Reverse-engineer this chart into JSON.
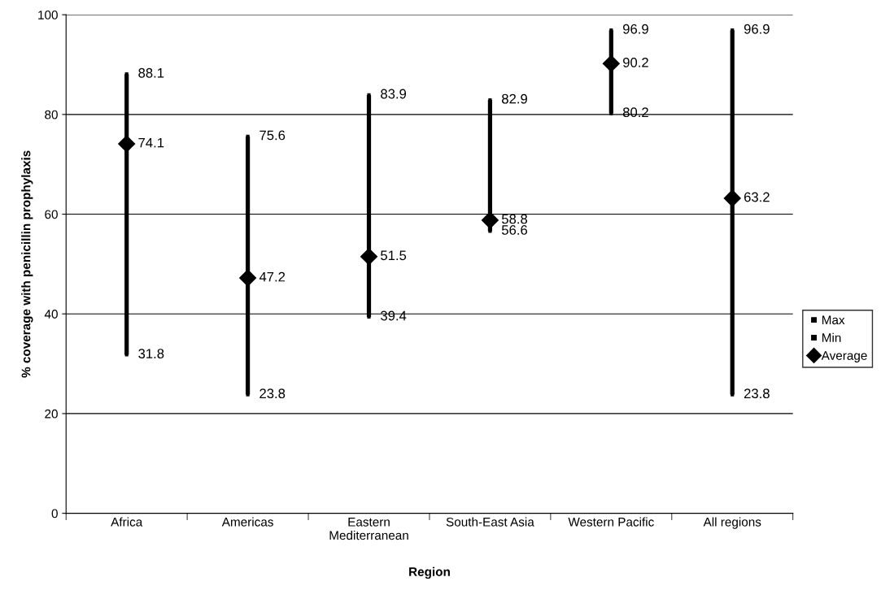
{
  "chart_data": {
    "type": "scatter",
    "xlabel": "Region",
    "ylabel": "% coverage with penicillin prophylaxis",
    "categories": [
      "Africa",
      "Americas",
      "Eastern Mediterranean",
      "South-East Asia",
      "Western Pacific",
      "All regions"
    ],
    "series": [
      {
        "type": "bar",
        "color": "#000000",
        "base": [
          31.8,
          23.8,
          39.4,
          56.6,
          80.2,
          23.8
        ],
        "values": [
          56.3,
          51.8,
          44.5,
          26.3,
          16.7,
          73.1
        ],
        "value_labels": [
          null,
          null,
          null,
          null,
          null,
          null
        ]
      },
      {
        "name": "Max",
        "color": "#000000",
        "marker": "square",
        "values": [
          88.1,
          75.6,
          83.9,
          82.9,
          96.9,
          96.9
        ]
      },
      {
        "name": "Min",
        "color": "#000000",
        "marker": "square",
        "values": [
          31.8,
          23.8,
          39.4,
          56.6,
          80.2,
          23.8
        ]
      },
      {
        "name": "Average",
        "color": "#000000",
        "marker": "diamond",
        "values": [
          74.1,
          47.2,
          51.5,
          58.8,
          90.2,
          63.2
        ]
      }
    ],
    "ylim": [
      0,
      100
    ],
    "yticks": [
      0,
      20,
      40,
      60,
      80,
      100
    ],
    "grid": "y",
    "legend": "right",
    "data_labels": true
  }
}
